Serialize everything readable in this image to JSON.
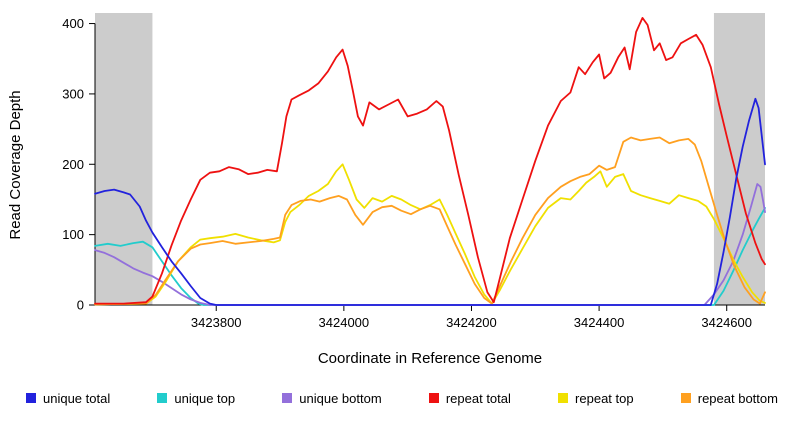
{
  "chart_data": {
    "type": "line",
    "title": "",
    "xlabel": "Coordinate in Reference Genome",
    "ylabel": "Read Coverage Depth",
    "xlim": [
      3423610,
      3424660
    ],
    "ylim": [
      0,
      415
    ],
    "x_ticks": [
      3423800,
      3424000,
      3424200,
      3424400,
      3424600
    ],
    "y_ticks": [
      0,
      100,
      200,
      300,
      400
    ],
    "grid": false,
    "legend_position": "bottom",
    "background_color": "#ffffff",
    "shaded_regions": [
      {
        "x0": 3423610,
        "x1": 3423700,
        "color": "#cccccc"
      },
      {
        "x0": 3424580,
        "x1": 3424660,
        "color": "#cccccc"
      }
    ],
    "draw_order": [
      1,
      2,
      4,
      5,
      3,
      0
    ],
    "series": [
      {
        "name": "unique total",
        "color": "#2222dd",
        "points": [
          [
            3423610,
            158
          ],
          [
            3423625,
            162
          ],
          [
            3423640,
            164
          ],
          [
            3423655,
            160
          ],
          [
            3423665,
            157
          ],
          [
            3423680,
            140
          ],
          [
            3423690,
            120
          ],
          [
            3423700,
            103
          ],
          [
            3423715,
            82
          ],
          [
            3423730,
            62
          ],
          [
            3423745,
            45
          ],
          [
            3423760,
            27
          ],
          [
            3423775,
            10
          ],
          [
            3423790,
            2
          ],
          [
            3423800,
            0
          ],
          [
            3424100,
            0
          ],
          [
            3424300,
            0
          ],
          [
            3424575,
            0
          ],
          [
            3424585,
            30
          ],
          [
            3424595,
            75
          ],
          [
            3424605,
            125
          ],
          [
            3424615,
            180
          ],
          [
            3424625,
            225
          ],
          [
            3424635,
            262
          ],
          [
            3424645,
            293
          ],
          [
            3424650,
            280
          ],
          [
            3424655,
            240
          ],
          [
            3424660,
            200
          ]
        ]
      },
      {
        "name": "unique top",
        "color": "#22cccc",
        "points": [
          [
            3423610,
            84
          ],
          [
            3423630,
            87
          ],
          [
            3423650,
            84
          ],
          [
            3423670,
            88
          ],
          [
            3423685,
            90
          ],
          [
            3423700,
            82
          ],
          [
            3423715,
            62
          ],
          [
            3423730,
            42
          ],
          [
            3423745,
            24
          ],
          [
            3423760,
            10
          ],
          [
            3423772,
            2
          ],
          [
            3423780,
            0
          ],
          [
            3424200,
            0
          ],
          [
            3424580,
            0
          ],
          [
            3424595,
            20
          ],
          [
            3424610,
            48
          ],
          [
            3424625,
            78
          ],
          [
            3424640,
            105
          ],
          [
            3424650,
            122
          ],
          [
            3424660,
            138
          ]
        ]
      },
      {
        "name": "unique bottom",
        "color": "#9370db",
        "points": [
          [
            3423610,
            78
          ],
          [
            3423625,
            74
          ],
          [
            3423640,
            68
          ],
          [
            3423655,
            60
          ],
          [
            3423670,
            52
          ],
          [
            3423685,
            46
          ],
          [
            3423700,
            41
          ],
          [
            3423715,
            33
          ],
          [
            3423730,
            24
          ],
          [
            3423745,
            15
          ],
          [
            3423760,
            8
          ],
          [
            3423775,
            3
          ],
          [
            3423790,
            0
          ],
          [
            3424200,
            0
          ],
          [
            3424565,
            0
          ],
          [
            3424580,
            15
          ],
          [
            3424595,
            35
          ],
          [
            3424610,
            62
          ],
          [
            3424625,
            100
          ],
          [
            3424638,
            140
          ],
          [
            3424648,
            172
          ],
          [
            3424653,
            168
          ],
          [
            3424657,
            148
          ],
          [
            3424660,
            132
          ]
        ]
      },
      {
        "name": "repeat total",
        "color": "#ee1111",
        "points": [
          [
            3423610,
            2
          ],
          [
            3423655,
            2
          ],
          [
            3423690,
            4
          ],
          [
            3423700,
            12
          ],
          [
            3423715,
            45
          ],
          [
            3423730,
            85
          ],
          [
            3423745,
            120
          ],
          [
            3423760,
            150
          ],
          [
            3423775,
            178
          ],
          [
            3423790,
            188
          ],
          [
            3423805,
            190
          ],
          [
            3423820,
            196
          ],
          [
            3423835,
            193
          ],
          [
            3423850,
            186
          ],
          [
            3423865,
            188
          ],
          [
            3423880,
            192
          ],
          [
            3423895,
            190
          ],
          [
            3423903,
            230
          ],
          [
            3423910,
            268
          ],
          [
            3423918,
            292
          ],
          [
            3423930,
            298
          ],
          [
            3423945,
            305
          ],
          [
            3423960,
            315
          ],
          [
            3423975,
            332
          ],
          [
            3423988,
            352
          ],
          [
            3423998,
            363
          ],
          [
            3424006,
            340
          ],
          [
            3424014,
            305
          ],
          [
            3424022,
            268
          ],
          [
            3424030,
            255
          ],
          [
            3424040,
            288
          ],
          [
            3424055,
            278
          ],
          [
            3424070,
            285
          ],
          [
            3424085,
            292
          ],
          [
            3424100,
            268
          ],
          [
            3424115,
            272
          ],
          [
            3424130,
            278
          ],
          [
            3424145,
            290
          ],
          [
            3424155,
            282
          ],
          [
            3424165,
            248
          ],
          [
            3424180,
            185
          ],
          [
            3424195,
            128
          ],
          [
            3424210,
            68
          ],
          [
            3424225,
            18
          ],
          [
            3424235,
            4
          ],
          [
            3424245,
            40
          ],
          [
            3424260,
            95
          ],
          [
            3424280,
            150
          ],
          [
            3424300,
            205
          ],
          [
            3424320,
            255
          ],
          [
            3424340,
            290
          ],
          [
            3424355,
            302
          ],
          [
            3424368,
            338
          ],
          [
            3424378,
            328
          ],
          [
            3424390,
            345
          ],
          [
            3424400,
            356
          ],
          [
            3424408,
            322
          ],
          [
            3424418,
            330
          ],
          [
            3424430,
            352
          ],
          [
            3424440,
            366
          ],
          [
            3424448,
            335
          ],
          [
            3424458,
            388
          ],
          [
            3424468,
            408
          ],
          [
            3424476,
            398
          ],
          [
            3424486,
            362
          ],
          [
            3424495,
            372
          ],
          [
            3424505,
            348
          ],
          [
            3424515,
            352
          ],
          [
            3424528,
            372
          ],
          [
            3424540,
            378
          ],
          [
            3424552,
            384
          ],
          [
            3424562,
            370
          ],
          [
            3424575,
            338
          ],
          [
            3424588,
            285
          ],
          [
            3424600,
            240
          ],
          [
            3424615,
            185
          ],
          [
            3424630,
            130
          ],
          [
            3424645,
            88
          ],
          [
            3424655,
            65
          ],
          [
            3424660,
            58
          ]
        ]
      },
      {
        "name": "repeat top",
        "color": "#f0e000",
        "points": [
          [
            3423610,
            1
          ],
          [
            3423690,
            2
          ],
          [
            3423705,
            12
          ],
          [
            3423720,
            32
          ],
          [
            3423740,
            62
          ],
          [
            3423760,
            82
          ],
          [
            3423775,
            93
          ],
          [
            3423790,
            95
          ],
          [
            3423810,
            97
          ],
          [
            3423830,
            101
          ],
          [
            3423850,
            96
          ],
          [
            3423870,
            92
          ],
          [
            3423890,
            89
          ],
          [
            3423900,
            92
          ],
          [
            3423908,
            118
          ],
          [
            3423916,
            132
          ],
          [
            3423930,
            142
          ],
          [
            3423945,
            155
          ],
          [
            3423960,
            162
          ],
          [
            3423975,
            172
          ],
          [
            3423988,
            190
          ],
          [
            3423998,
            200
          ],
          [
            3424008,
            178
          ],
          [
            3424020,
            150
          ],
          [
            3424032,
            138
          ],
          [
            3424045,
            152
          ],
          [
            3424060,
            147
          ],
          [
            3424075,
            155
          ],
          [
            3424090,
            150
          ],
          [
            3424105,
            142
          ],
          [
            3424120,
            136
          ],
          [
            3424135,
            142
          ],
          [
            3424150,
            150
          ],
          [
            3424162,
            128
          ],
          [
            3424175,
            102
          ],
          [
            3424190,
            72
          ],
          [
            3424205,
            40
          ],
          [
            3424220,
            15
          ],
          [
            3424232,
            2
          ],
          [
            3424245,
            22
          ],
          [
            3424260,
            48
          ],
          [
            3424280,
            80
          ],
          [
            3424300,
            112
          ],
          [
            3424320,
            138
          ],
          [
            3424340,
            152
          ],
          [
            3424355,
            150
          ],
          [
            3424368,
            162
          ],
          [
            3424380,
            174
          ],
          [
            3424392,
            182
          ],
          [
            3424402,
            190
          ],
          [
            3424412,
            168
          ],
          [
            3424425,
            182
          ],
          [
            3424438,
            186
          ],
          [
            3424450,
            162
          ],
          [
            3424465,
            156
          ],
          [
            3424480,
            152
          ],
          [
            3424495,
            148
          ],
          [
            3424510,
            144
          ],
          [
            3424525,
            156
          ],
          [
            3424540,
            152
          ],
          [
            3424555,
            148
          ],
          [
            3424568,
            140
          ],
          [
            3424580,
            122
          ],
          [
            3424595,
            95
          ],
          [
            3424610,
            65
          ],
          [
            3424625,
            40
          ],
          [
            3424640,
            18
          ],
          [
            3424652,
            6
          ],
          [
            3424660,
            3
          ]
        ]
      },
      {
        "name": "repeat bottom",
        "color": "#ffa020",
        "points": [
          [
            3423610,
            1
          ],
          [
            3423690,
            2
          ],
          [
            3423705,
            14
          ],
          [
            3423720,
            35
          ],
          [
            3423740,
            62
          ],
          [
            3423760,
            80
          ],
          [
            3423775,
            86
          ],
          [
            3423790,
            88
          ],
          [
            3423810,
            91
          ],
          [
            3423830,
            87
          ],
          [
            3423850,
            89
          ],
          [
            3423870,
            91
          ],
          [
            3423890,
            94
          ],
          [
            3423900,
            96
          ],
          [
            3423908,
            128
          ],
          [
            3423918,
            142
          ],
          [
            3423932,
            148
          ],
          [
            3423948,
            150
          ],
          [
            3423962,
            147
          ],
          [
            3423978,
            152
          ],
          [
            3423992,
            155
          ],
          [
            3424005,
            150
          ],
          [
            3424018,
            128
          ],
          [
            3424030,
            114
          ],
          [
            3424045,
            132
          ],
          [
            3424060,
            139
          ],
          [
            3424075,
            141
          ],
          [
            3424090,
            134
          ],
          [
            3424105,
            129
          ],
          [
            3424120,
            136
          ],
          [
            3424135,
            141
          ],
          [
            3424150,
            136
          ],
          [
            3424162,
            112
          ],
          [
            3424175,
            86
          ],
          [
            3424190,
            58
          ],
          [
            3424205,
            30
          ],
          [
            3424220,
            10
          ],
          [
            3424232,
            2
          ],
          [
            3424245,
            28
          ],
          [
            3424262,
            62
          ],
          [
            3424280,
            95
          ],
          [
            3424300,
            128
          ],
          [
            3424320,
            152
          ],
          [
            3424340,
            168
          ],
          [
            3424355,
            176
          ],
          [
            3424370,
            182
          ],
          [
            3424385,
            186
          ],
          [
            3424400,
            198
          ],
          [
            3424412,
            192
          ],
          [
            3424425,
            196
          ],
          [
            3424438,
            232
          ],
          [
            3424450,
            238
          ],
          [
            3424465,
            234
          ],
          [
            3424480,
            236
          ],
          [
            3424495,
            238
          ],
          [
            3424510,
            230
          ],
          [
            3424525,
            234
          ],
          [
            3424540,
            236
          ],
          [
            3424550,
            228
          ],
          [
            3424560,
            205
          ],
          [
            3424572,
            168
          ],
          [
            3424585,
            128
          ],
          [
            3424598,
            90
          ],
          [
            3424612,
            55
          ],
          [
            3424628,
            25
          ],
          [
            3424642,
            8
          ],
          [
            3424652,
            2
          ],
          [
            3424660,
            18
          ]
        ]
      }
    ]
  }
}
